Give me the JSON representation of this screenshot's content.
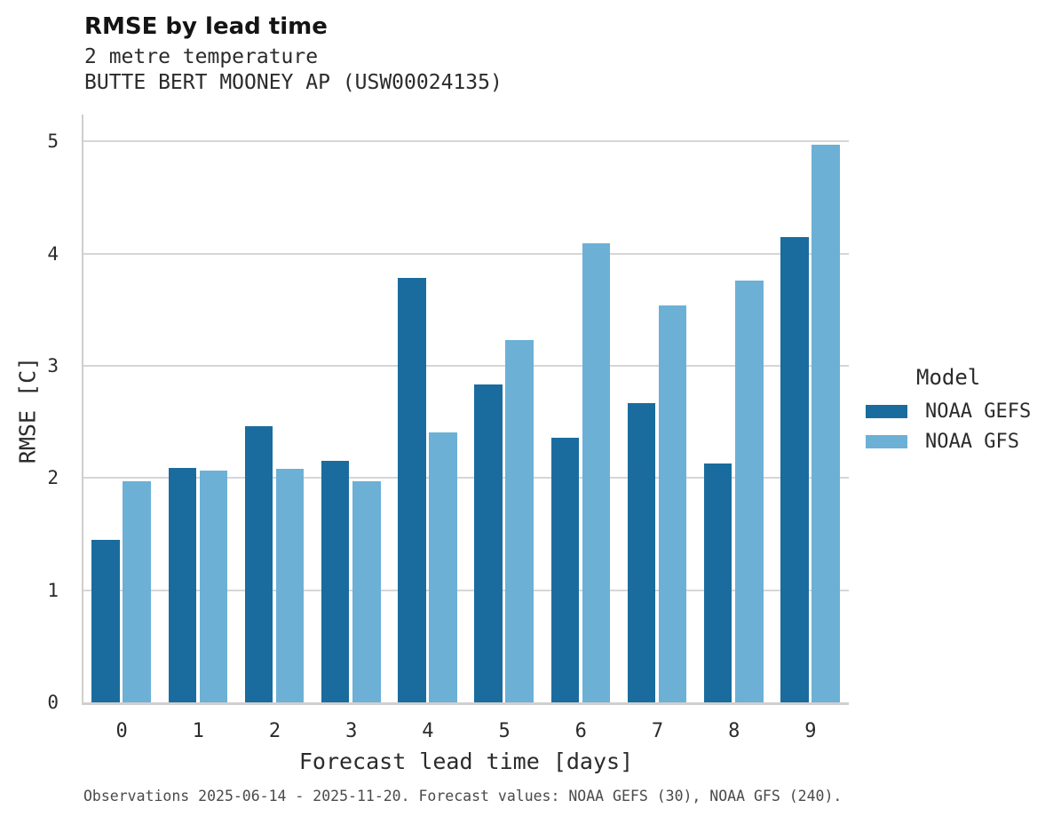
{
  "header": {
    "title": "RMSE by lead time",
    "subtitle_line1": "2 metre temperature",
    "subtitle_line2": "BUTTE BERT MOONEY AP (USW00024135)"
  },
  "legend": {
    "title": "Model",
    "items": [
      {
        "label": "NOAA GEFS",
        "color": "#1a6c9e"
      },
      {
        "label": "NOAA GFS",
        "color": "#6cb0d6"
      }
    ]
  },
  "footer": {
    "text": "Observations 2025-06-14 - 2025-11-20. Forecast values: NOAA GEFS (30), NOAA GFS (240)."
  },
  "colors": {
    "gefs_bar": "#1a6c9e",
    "gfs_bar": "#6cb0d6",
    "gridline": "#d6d6d6",
    "axis_spine": "#cfcfcf",
    "tick_text": "#2b2b2b",
    "footer_text": "#4a4a4a"
  },
  "chart_data": {
    "type": "bar",
    "title": "RMSE by lead time",
    "subtitle": [
      "2 metre temperature",
      "BUTTE BERT MOONEY AP (USW00024135)"
    ],
    "categories": [
      "0",
      "1",
      "2",
      "3",
      "4",
      "5",
      "6",
      "7",
      "8",
      "9"
    ],
    "series": [
      {
        "name": "NOAA GEFS",
        "color": "#1a6c9e",
        "values": [
          1.45,
          2.09,
          2.46,
          2.15,
          3.78,
          2.83,
          2.36,
          2.67,
          2.13,
          4.15
        ]
      },
      {
        "name": "NOAA GFS",
        "color": "#6cb0d6",
        "values": [
          1.97,
          2.07,
          2.08,
          1.97,
          2.41,
          3.23,
          4.09,
          3.54,
          3.76,
          4.97
        ]
      }
    ],
    "xlabel": "Forecast lead time [days]",
    "ylabel": "RMSE [C]",
    "ylim": [
      0,
      5.24
    ],
    "yticks": [
      0,
      1,
      2,
      3,
      4,
      5
    ],
    "grid": true,
    "legend_title": "Model",
    "legend_position": "right",
    "caption": "Observations 2025-06-14 - 2025-11-20. Forecast values: NOAA GEFS (30), NOAA GFS (240)."
  }
}
